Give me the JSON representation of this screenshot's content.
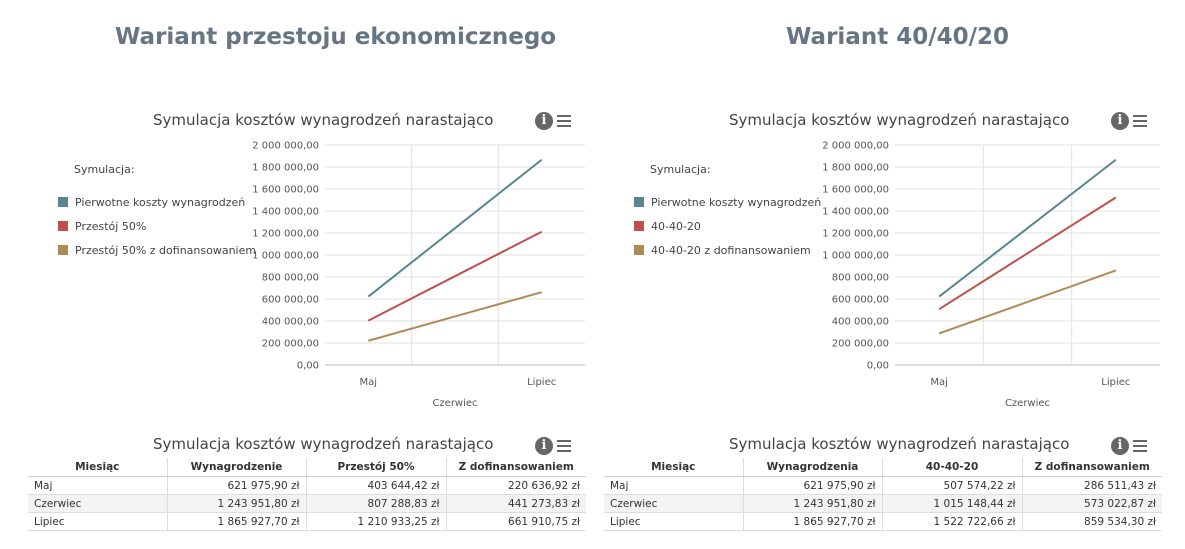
{
  "variants": [
    {
      "heading": "Wariant przestoju ekonomicznego",
      "chart_title": "Symulacja kosztów wynagrodzeń narastająco",
      "legend_title": "Symulacja:",
      "table_title": "Symulacja kosztów wynagrodzeń narastająco",
      "table": {
        "headers": [
          "Miesiąc",
          "Wynagrodzenie",
          "Przestój 50%",
          "Z dofinansowaniem"
        ],
        "rows": [
          [
            "Maj",
            "621 975,90 zł",
            "403 644,42 zł",
            "220 636,92 zł"
          ],
          [
            "Czerwiec",
            "1 243 951,80 zł",
            "807 288,83 zł",
            "441 273,83 zł"
          ],
          [
            "Lipiec",
            "1 865 927,70 zł",
            "1 210 933,25 zł",
            "661 910,75 zł"
          ]
        ]
      }
    },
    {
      "heading": "Wariant 40/40/20",
      "chart_title": "Symulacja kosztów wynagrodzeń narastająco",
      "legend_title": "Symulacja:",
      "table_title": "Symulacja kosztów wynagrodzeń narastająco",
      "table": {
        "headers": [
          "Miesiąc",
          "Wynagrodzenia",
          "40-40-20",
          "Z dofinansowaniem"
        ],
        "rows": [
          [
            "Maj",
            "621 975,90 zł",
            "507 574,22 zł",
            "286 511,43 zł"
          ],
          [
            "Czerwiec",
            "1 243 951,80 zł",
            "1 015 148,44 zł",
            "573 022,87 zł"
          ],
          [
            "Lipiec",
            "1 865 927,70 zł",
            "1 522 722,66 zł",
            "859 534,30 zł"
          ]
        ]
      }
    }
  ],
  "icons": {
    "info": "info-icon",
    "menu": "menu-icon",
    "info_glyph": "i"
  },
  "chart_data": [
    {
      "type": "line",
      "title": "Symulacja kosztów wynagrodzeń narastająco",
      "categories": [
        "Maj",
        "Czerwiec",
        "Lipiec"
      ],
      "y_ticks": [
        "0,00",
        "200 000,00",
        "400 000,00",
        "600 000,00",
        "800 000,00",
        "1 000 000,00",
        "1 200 000,00",
        "1 400 000,00",
        "1 600 000,00",
        "1 800 000,00",
        "2 000 000,00"
      ],
      "ylim": [
        0,
        2000000
      ],
      "legend_position": "left",
      "grid": true,
      "series": [
        {
          "name": "Pierwotne koszty wynagrodzeń",
          "color": "#5b8591",
          "values": [
            621975.9,
            1243951.8,
            1865927.7
          ]
        },
        {
          "name": "Przestój 50%",
          "color": "#c0504d",
          "values": [
            403644.42,
            807288.83,
            1210933.25
          ]
        },
        {
          "name": "Przestój 50% z dofinansowaniem",
          "color": "#b08a56",
          "values": [
            220636.92,
            441273.83,
            661910.75
          ]
        }
      ]
    },
    {
      "type": "line",
      "title": "Symulacja kosztów wynagrodzeń narastająco",
      "categories": [
        "Maj",
        "Czerwiec",
        "Lipiec"
      ],
      "y_ticks": [
        "0,00",
        "200 000,00",
        "400 000,00",
        "600 000,00",
        "800 000,00",
        "1 000 000,00",
        "1 200 000,00",
        "1 400 000,00",
        "1 600 000,00",
        "1 800 000,00",
        "2 000 000,00"
      ],
      "ylim": [
        0,
        2000000
      ],
      "legend_position": "left",
      "grid": true,
      "series": [
        {
          "name": "Pierwotne koszty wynagrodzeń",
          "color": "#5b8591",
          "values": [
            621975.9,
            1243951.8,
            1865927.7
          ]
        },
        {
          "name": "40-40-20",
          "color": "#c0504d",
          "values": [
            507574.22,
            1015148.44,
            1522722.66
          ]
        },
        {
          "name": "40-40-20 z dofinansowaniem",
          "color": "#b08a56",
          "values": [
            286511.43,
            573022.87,
            859534.3
          ]
        }
      ]
    }
  ]
}
